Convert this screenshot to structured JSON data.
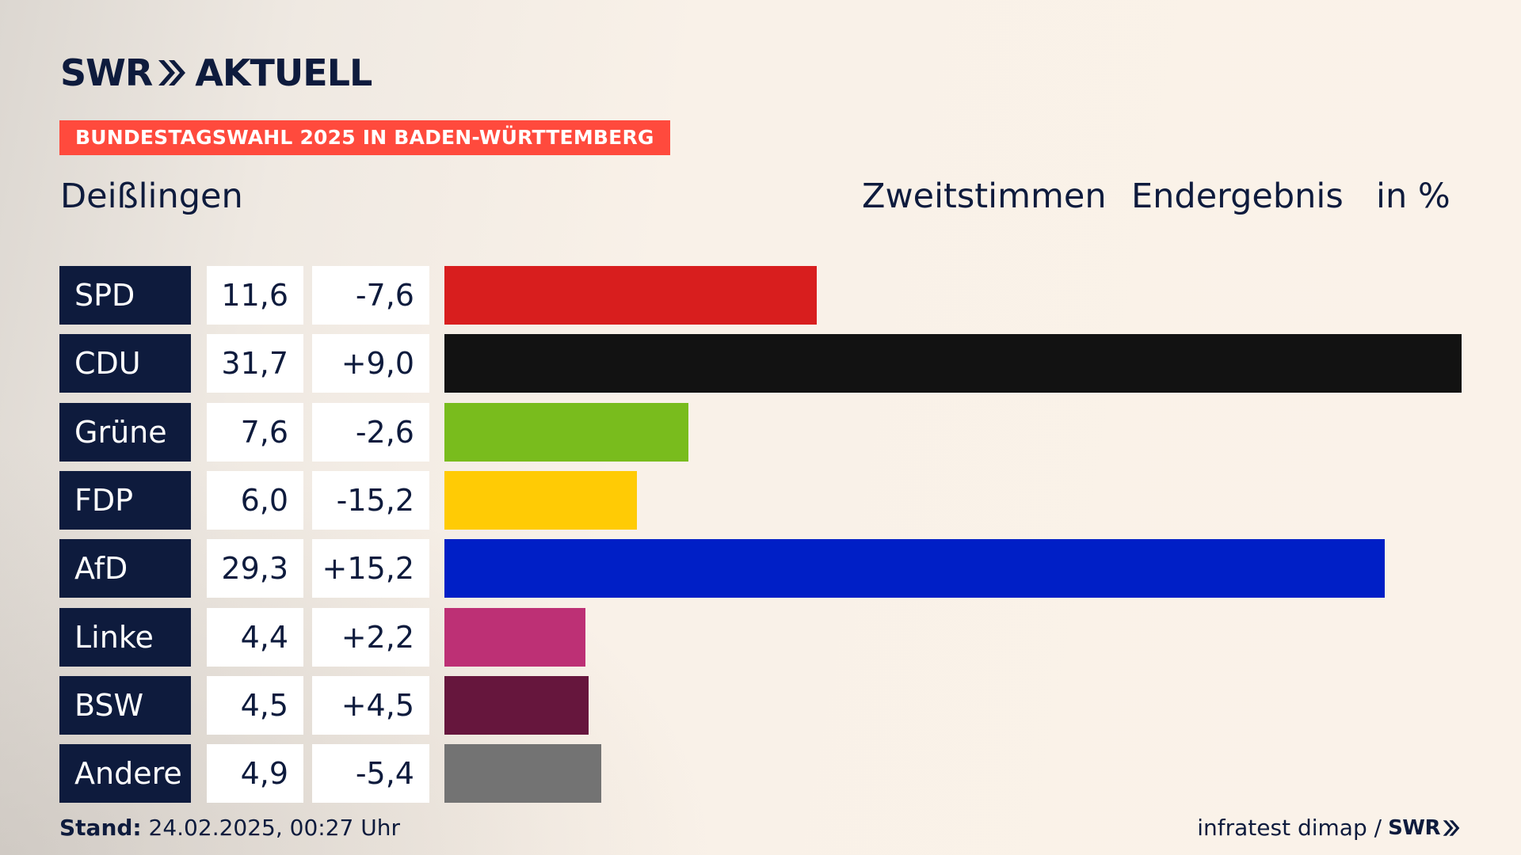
{
  "header": {
    "logo_swr": "SWR",
    "logo_aktuell": "AKTUELL",
    "banner": "BUNDESTAGSWAHL 2025 IN BADEN-WÜRTTEMBERG",
    "place": "Deißlingen",
    "col_type": "Zweitstimmen",
    "col_status": "Endergebnis",
    "col_unit": "in %"
  },
  "colors": {
    "navy": "#0e1b3d",
    "banner": "#ff4a3d"
  },
  "chart_data": {
    "type": "bar",
    "orientation": "horizontal",
    "categories": [
      "SPD",
      "CDU",
      "Grüne",
      "FDP",
      "AfD",
      "Linke",
      "BSW",
      "Andere"
    ],
    "values": [
      11.6,
      31.7,
      7.6,
      6.0,
      29.3,
      4.4,
      4.5,
      4.9
    ],
    "value_labels": [
      "11,6",
      "31,7",
      "7,6",
      "6,0",
      "29,3",
      "4,4",
      "4,5",
      "4,9"
    ],
    "diff_labels": [
      "-7,6",
      "+9,0",
      "-2,6",
      "-15,2",
      "+15,2",
      "+2,2",
      "+4,5",
      "-5,4"
    ],
    "colors": [
      "#d81e1e",
      "#121212",
      "#79bc1d",
      "#ffcb05",
      "#001fc6",
      "#bd3075",
      "#66163d",
      "#737373"
    ],
    "xlim": [
      0,
      31.7
    ]
  },
  "footer": {
    "stand_label": "Stand:",
    "stand_value": "24.02.2025, 00:27 Uhr",
    "source": "infratest dimap /",
    "source_logo": "SWR"
  }
}
